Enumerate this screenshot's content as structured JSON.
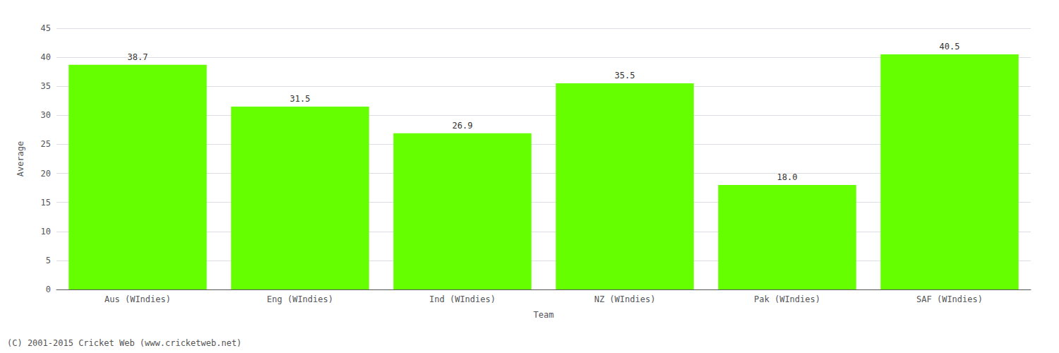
{
  "chart_data": {
    "type": "bar",
    "categories": [
      "Aus (WIndies)",
      "Eng (WIndies)",
      "Ind (WIndies)",
      "NZ (WIndies)",
      "Pak (WIndies)",
      "SAF (WIndies)"
    ],
    "values": [
      38.7,
      31.5,
      26.9,
      35.5,
      18.0,
      40.5
    ],
    "value_labels": [
      "38.7",
      "31.5",
      "26.9",
      "35.5",
      "18.0",
      "40.5"
    ],
    "color": "#66ff00",
    "xlabel": "Team",
    "ylabel": "Average",
    "ylim": [
      0,
      45
    ],
    "yticks": [
      0,
      5,
      10,
      15,
      20,
      25,
      30,
      35,
      40,
      45
    ],
    "grid": true,
    "data_labels": true,
    "annotations": [
      "(C) 2001-2015 Cricket Web (www.cricketweb.net)"
    ]
  }
}
